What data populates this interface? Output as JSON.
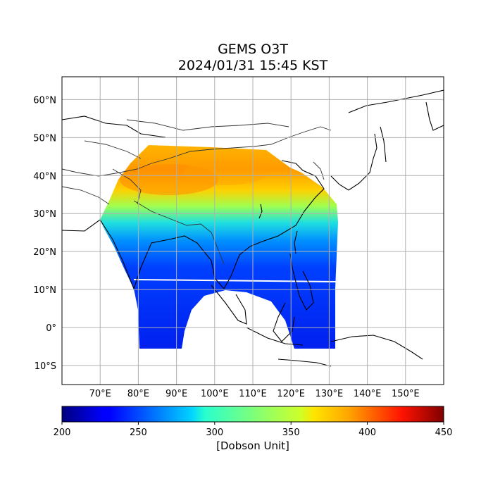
{
  "title": "GEMS O3T",
  "subtitle": "2024/01/31 15:45 KST",
  "colorbar": {
    "label": "[Dobson Unit]",
    "min": 200,
    "max": 450,
    "ticks": [
      "200",
      "250",
      "300",
      "350",
      "400",
      "450"
    ],
    "colormap": "jet"
  },
  "map": {
    "lon_range": [
      60,
      160
    ],
    "lat_range": [
      -15,
      66
    ],
    "lon_ticks": [
      {
        "value": 70,
        "label": "70°E"
      },
      {
        "value": 80,
        "label": "80°E"
      },
      {
        "value": 90,
        "label": "90°E"
      },
      {
        "value": 100,
        "label": "100°E"
      },
      {
        "value": 110,
        "label": "110°E"
      },
      {
        "value": 120,
        "label": "120°E"
      },
      {
        "value": 130,
        "label": "130°E"
      },
      {
        "value": 140,
        "label": "140°E"
      },
      {
        "value": 150,
        "label": "150°E"
      }
    ],
    "lat_ticks": [
      {
        "value": 60,
        "label": "60°N"
      },
      {
        "value": 50,
        "label": "50°N"
      },
      {
        "value": 40,
        "label": "40°N"
      },
      {
        "value": 30,
        "label": "30°N"
      },
      {
        "value": 20,
        "label": "20°N"
      },
      {
        "value": 10,
        "label": "10°N"
      },
      {
        "value": 0,
        "label": "0°"
      },
      {
        "value": -10,
        "label": "10°S"
      }
    ],
    "gridlines": true,
    "coastlines": true,
    "borders": true
  }
}
